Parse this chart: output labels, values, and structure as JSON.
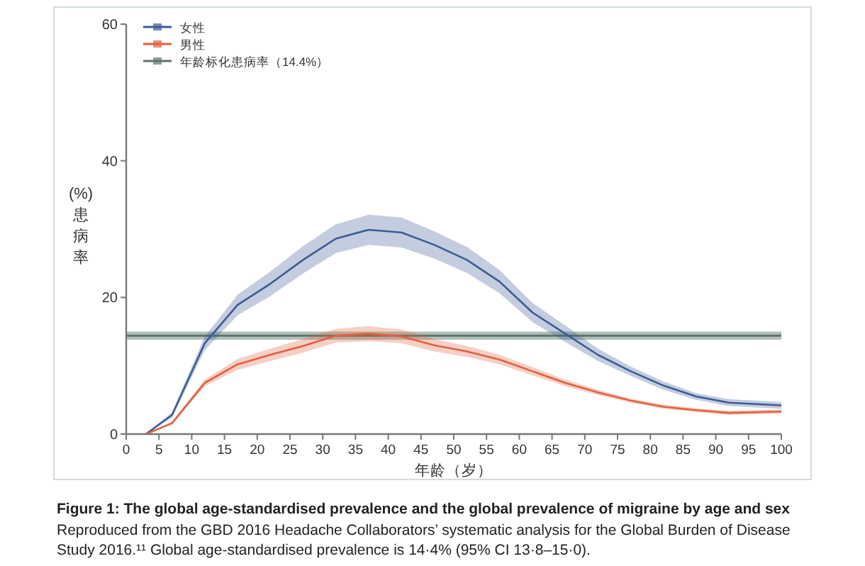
{
  "chart_data": {
    "type": "line",
    "xlabel": "年龄（岁）",
    "ylabel": "(%)患病率",
    "xlim": [
      0,
      100
    ],
    "xticks": [
      0,
      5,
      10,
      15,
      20,
      25,
      30,
      35,
      40,
      45,
      50,
      55,
      60,
      65,
      70,
      75,
      80,
      85,
      90,
      95,
      100
    ],
    "ylim": [
      0,
      60
    ],
    "yticks": [
      0,
      20,
      40,
      60
    ],
    "grid": false,
    "legend": "top left",
    "series": [
      {
        "name": "女性",
        "color": "#3d5b95",
        "x": [
          3,
          7,
          12,
          17,
          22,
          27,
          32,
          37,
          42,
          47,
          52,
          57,
          62,
          67,
          72,
          77,
          82,
          87,
          92,
          100
        ],
        "values": [
          0,
          2.8,
          13.3,
          18.9,
          22,
          25.5,
          28.6,
          29.9,
          29.5,
          27.7,
          25.5,
          22.3,
          17.8,
          14.7,
          11.6,
          9.2,
          7.1,
          5.5,
          4.6,
          4.2
        ],
        "lower": [
          0,
          2.4,
          12.3,
          17.4,
          20.2,
          23.5,
          26.5,
          27.7,
          27.3,
          25.7,
          23.6,
          20.6,
          16.4,
          13.5,
          10.7,
          8.5,
          6.5,
          5.0,
          4.1,
          3.7
        ],
        "upper": [
          0,
          3.2,
          14.3,
          20.4,
          23.8,
          27.5,
          30.7,
          32.1,
          31.7,
          29.7,
          27.4,
          24.0,
          19.2,
          15.9,
          12.5,
          9.9,
          7.7,
          6.0,
          5.1,
          4.7
        ]
      },
      {
        "name": "男性",
        "color": "#e1603f",
        "x": [
          3,
          7,
          12,
          17,
          22,
          27,
          32,
          37,
          42,
          47,
          52,
          57,
          62,
          67,
          72,
          77,
          82,
          87,
          92,
          100
        ],
        "values": [
          0,
          1.6,
          7.5,
          10.2,
          11.6,
          12.9,
          14.4,
          14.7,
          14.3,
          13.0,
          12.1,
          10.9,
          9.2,
          7.5,
          6.1,
          4.9,
          4.0,
          3.5,
          3.1,
          3.3
        ],
        "lower": [
          0,
          1.4,
          7.0,
          9.4,
          10.7,
          11.9,
          13.4,
          13.6,
          13.3,
          12.1,
          11.3,
          10.2,
          8.6,
          7.0,
          5.7,
          4.6,
          3.7,
          3.2,
          2.8,
          3.0
        ],
        "upper": [
          0,
          1.8,
          8.0,
          11.0,
          12.5,
          13.9,
          15.4,
          15.8,
          15.3,
          13.9,
          12.9,
          11.6,
          9.8,
          8.0,
          6.5,
          5.2,
          4.3,
          3.8,
          3.4,
          3.6
        ]
      }
    ],
    "ref_lines": [
      {
        "axis": "y",
        "value": 14.4,
        "label": "年龄标化患病率（14.4%）",
        "color": "#5d756b"
      }
    ],
    "bands": [
      {
        "axis": "y",
        "from": 13.8,
        "to": 15.0,
        "color": "#a4b5ad"
      }
    ],
    "annotations": [
      "Figure 1: The global age-standardised prevalence and the global prevalence of migraine by age and sex",
      "Reproduced from the GBD 2016 Headache Collaborators’ systematic analysis for the Global Burden of Disease Study 2016.¹¹ Global age-standardised prevalence is 14·4% (95% CI 13·8–15·0)."
    ]
  }
}
